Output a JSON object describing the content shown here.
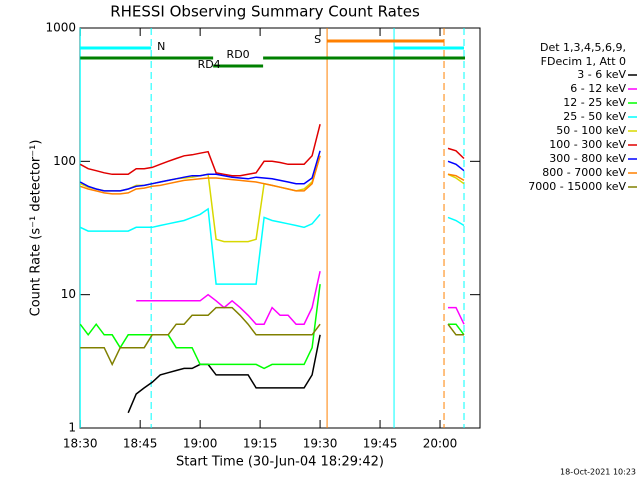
{
  "chart_data": {
    "type": "line",
    "title": "RHESSI Observing Summary Count Rates",
    "x_label": "Start Time (30-Jun-04 18:29:42)",
    "y_label": "Count Rate (s⁻¹ detector⁻¹)",
    "footer": "18-Oct-2021 10:23",
    "legend_header": [
      "Det 1,3,4,5,6,9,",
      "FDecim 1, Att 0"
    ],
    "log_y": true,
    "xlim": [
      -0.3,
      100
    ],
    "ylim": [
      1,
      1000
    ],
    "yticks": [
      1,
      10,
      100,
      1000
    ],
    "xticks": [
      {
        "value": 0,
        "label": "18:30"
      },
      {
        "value": 15,
        "label": "18:45"
      },
      {
        "value": 30,
        "label": "19:00"
      },
      {
        "value": 45,
        "label": "19:15"
      },
      {
        "value": 60,
        "label": "19:30"
      },
      {
        "value": 75,
        "label": "19:45"
      },
      {
        "value": 90,
        "label": "20:00"
      }
    ],
    "x": [
      0,
      2,
      4,
      6,
      8,
      10,
      12,
      14,
      16,
      18,
      20,
      22,
      24,
      26,
      28,
      30,
      32,
      34,
      36,
      38,
      40,
      42,
      44,
      46,
      48,
      50,
      52,
      54,
      56,
      58,
      60,
      76,
      92,
      94,
      96
    ],
    "series": [
      {
        "name": "3 - 6 keV",
        "color": "#000000",
        "values": [
          null,
          null,
          null,
          null,
          null,
          null,
          1.3,
          1.8,
          2,
          2.2,
          2.5,
          2.6,
          2.7,
          2.8,
          2.8,
          3,
          3,
          2.5,
          2.5,
          2.5,
          2.5,
          2.5,
          2,
          2,
          2,
          2,
          2,
          2,
          2,
          2.5,
          5,
          null,
          null,
          null,
          null
        ]
      },
      {
        "name": "6 - 12 keV",
        "color": "#ff00ff",
        "values": [
          null,
          null,
          null,
          null,
          null,
          null,
          null,
          9,
          9,
          9,
          9,
          9,
          9,
          9,
          9,
          9,
          10,
          9,
          8,
          9,
          8,
          7,
          6,
          6,
          8,
          7,
          7,
          6,
          6,
          8,
          15,
          null,
          8,
          8,
          6
        ]
      },
      {
        "name": "12 - 25 keV",
        "color": "#00ff00",
        "values": [
          6,
          5,
          6,
          5,
          5,
          4,
          5,
          5,
          5,
          5,
          5,
          5,
          4,
          4,
          4,
          3,
          3,
          3,
          3,
          3,
          3,
          3,
          3,
          2.8,
          3,
          3,
          3,
          3,
          3,
          4,
          12,
          null,
          6,
          6,
          5
        ]
      },
      {
        "name": "25 - 50 keV",
        "color": "#00ffff",
        "values": [
          32,
          30,
          30,
          30,
          30,
          30,
          30,
          32,
          32,
          32,
          33,
          34,
          35,
          36,
          38,
          40,
          44,
          12,
          12,
          12,
          12,
          12,
          12,
          38,
          36,
          35,
          34,
          33,
          32,
          34,
          40,
          null,
          38,
          36,
          33
        ]
      },
      {
        "name": "50 - 100 keV",
        "color": "#d8d800",
        "values": [
          68,
          64,
          62,
          60,
          60,
          60,
          62,
          66,
          66,
          68,
          70,
          72,
          74,
          75,
          76,
          78,
          80,
          26,
          25,
          25,
          25,
          25,
          26,
          68,
          66,
          64,
          62,
          60,
          62,
          70,
          110,
          null,
          80,
          75,
          68
        ]
      },
      {
        "name": "100 - 300 keV",
        "color": "#e00000",
        "values": [
          95,
          88,
          85,
          82,
          80,
          80,
          80,
          88,
          88,
          90,
          95,
          100,
          105,
          110,
          112,
          115,
          118,
          82,
          80,
          78,
          78,
          80,
          82,
          100,
          100,
          98,
          95,
          95,
          95,
          110,
          190,
          null,
          125,
          120,
          105
        ]
      },
      {
        "name": "300 - 800 keV",
        "color": "#0000ff",
        "values": [
          70,
          65,
          62,
          60,
          60,
          60,
          62,
          65,
          66,
          68,
          70,
          72,
          74,
          76,
          78,
          78,
          80,
          80,
          78,
          76,
          75,
          74,
          76,
          75,
          74,
          72,
          70,
          68,
          68,
          75,
          120,
          null,
          100,
          95,
          85
        ]
      },
      {
        "name": "800 - 7000 keV",
        "color": "#ff8000",
        "values": [
          65,
          62,
          60,
          58,
          57,
          57,
          58,
          62,
          63,
          65,
          66,
          68,
          70,
          72,
          73,
          74,
          75,
          75,
          74,
          73,
          72,
          71,
          70,
          68,
          66,
          64,
          62,
          60,
          60,
          68,
          110,
          null,
          80,
          78,
          72
        ]
      },
      {
        "name": "7000 - 15000 keV",
        "color": "#808000",
        "values": [
          4,
          4,
          4,
          4,
          3,
          4,
          4,
          4,
          4,
          5,
          5,
          5,
          6,
          6,
          7,
          7,
          7,
          8,
          8,
          8,
          7,
          6,
          5,
          5,
          5,
          5,
          5,
          5,
          5,
          5,
          6,
          null,
          6,
          5,
          5
        ]
      }
    ],
    "vlines": [
      {
        "x": 0,
        "color": "#00ffff",
        "dashed": false
      },
      {
        "x": 17.75,
        "color": "#00ffff",
        "dashed": true
      },
      {
        "x": 61.75,
        "color": "#ff8000",
        "dashed": false
      },
      {
        "x": 78.5,
        "color": "#00ffff",
        "dashed": false
      },
      {
        "x": 91,
        "color": "#ff8000",
        "dashed": true
      },
      {
        "x": 96,
        "color": "#00ffff",
        "dashed": true
      }
    ],
    "states": [
      {
        "label": "N",
        "color": "#00ffff",
        "segments": [
          [
            0,
            17.75
          ],
          [
            78.5,
            96
          ]
        ]
      },
      {
        "label": "S",
        "color": "#ff8000",
        "segments": [
          [
            61.75,
            91
          ]
        ]
      },
      {
        "label": "RD0",
        "color": "#008000",
        "segments": [
          [
            0,
            33.25
          ],
          [
            45.75,
            96.25
          ]
        ]
      },
      {
        "label": "RD4",
        "color": "#008000",
        "segments": [
          [
            33.25,
            45.75
          ]
        ]
      }
    ]
  }
}
